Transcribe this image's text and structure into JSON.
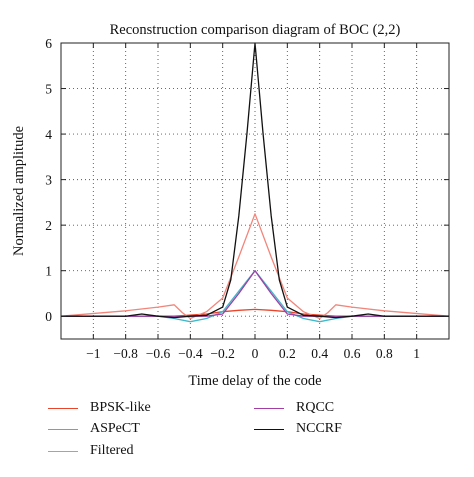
{
  "chart_data": {
    "type": "line",
    "title": "Reconstruction comparison diagram of BOC (2,2)",
    "xlabel": "Time delay of the code",
    "ylabel": "Normalized amplitude",
    "xlim": [
      -1.2,
      1.2
    ],
    "ylim": [
      -0.5,
      6
    ],
    "xticks": [
      -1,
      -0.8,
      -0.6,
      -0.4,
      -0.2,
      0,
      0.2,
      0.4,
      0.6,
      0.8,
      1
    ],
    "xtick_labels": [
      "−1",
      "−0.8",
      "−0.6",
      "−0.4",
      "−0.2",
      "0",
      "0.2",
      "0.4",
      "0.6",
      "0.8",
      "1"
    ],
    "yticks": [
      0,
      1,
      2,
      3,
      4,
      5,
      6
    ],
    "ytick_labels": [
      "0",
      "1",
      "2",
      "3",
      "4",
      "5",
      "6"
    ],
    "grid": true,
    "legend_position": "below",
    "series": [
      {
        "name": "BPSK-like",
        "color": "#e8452c",
        "x": [
          -1.2,
          -0.5,
          -0.3,
          -0.2,
          -0.1,
          0,
          0.1,
          0.2,
          0.3,
          0.5,
          1.2
        ],
        "y": [
          0,
          0,
          0.05,
          0.1,
          0.13,
          0.15,
          0.13,
          0.1,
          0.05,
          0,
          0
        ]
      },
      {
        "name": "ASPeCT",
        "color": "#3fb8c9",
        "x": [
          -1.2,
          -0.6,
          -0.5,
          -0.4,
          -0.3,
          -0.2,
          -0.1,
          0,
          0.1,
          0.2,
          0.3,
          0.4,
          0.5,
          0.6,
          1.2
        ],
        "y": [
          0,
          0,
          -0.05,
          -0.12,
          -0.05,
          0.1,
          0.55,
          1.0,
          0.55,
          0.1,
          -0.05,
          -0.12,
          -0.05,
          0,
          0
        ]
      },
      {
        "name": "Filtered",
        "color": "#f2857a",
        "x": [
          -1.2,
          -0.8,
          -0.6,
          -0.5,
          -0.45,
          -0.4,
          -0.3,
          -0.2,
          -0.1,
          0,
          0.1,
          0.2,
          0.3,
          0.4,
          0.45,
          0.5,
          0.6,
          0.8,
          1.2
        ],
        "y": [
          0,
          0.12,
          0.2,
          0.25,
          0.08,
          -0.05,
          0.1,
          0.4,
          1.3,
          2.25,
          1.3,
          0.4,
          0.1,
          -0.05,
          0.08,
          0.25,
          0.2,
          0.12,
          0
        ]
      },
      {
        "name": "RQCC",
        "color": "#a23ea3",
        "x": [
          -1.2,
          -0.3,
          -0.2,
          -0.1,
          0,
          0.1,
          0.2,
          0.3,
          1.2
        ],
        "y": [
          0,
          0,
          0.05,
          0.5,
          1.0,
          0.5,
          0.05,
          0,
          0
        ]
      },
      {
        "name": "NCCRF",
        "color": "#111111",
        "x": [
          -1.2,
          -0.8,
          -0.7,
          -0.6,
          -0.5,
          -0.4,
          -0.3,
          -0.2,
          -0.15,
          -0.1,
          -0.05,
          0,
          0.05,
          0.1,
          0.15,
          0.2,
          0.3,
          0.4,
          0.5,
          0.6,
          0.7,
          0.8,
          1.2
        ],
        "y": [
          0,
          0,
          0.05,
          0,
          -0.03,
          0,
          0.02,
          0.2,
          0.8,
          2.2,
          4.0,
          6.0,
          4.0,
          2.2,
          0.8,
          0.2,
          0.02,
          0,
          -0.03,
          0,
          0.05,
          0,
          0
        ]
      }
    ]
  }
}
